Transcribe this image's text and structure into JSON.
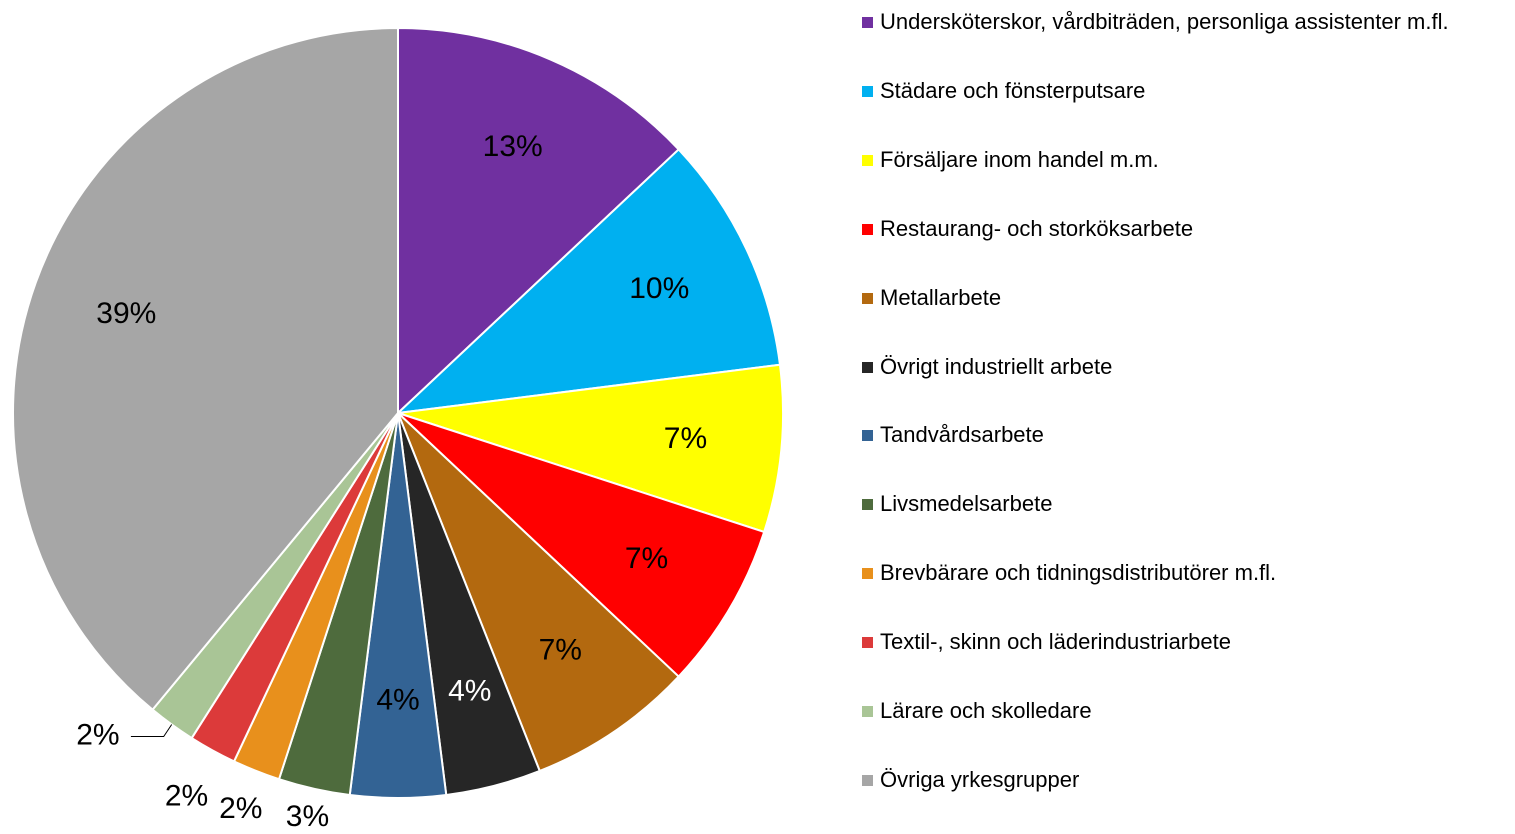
{
  "chart_data": {
    "type": "pie",
    "categories": [
      "Undersköterskor, vårdbiträden, personliga assistenter m.fl.",
      "Städare och fönsterputsare",
      "Försäljare inom handel m.m.",
      "Restaurang- och storköksarbete",
      "Metallarbete",
      "Övrigt industriellt arbete",
      "Tandvårdsarbete",
      "Livsmedelsarbete",
      "Brevbärare och tidningsdistributörer m.fl.",
      "Textil-, skinn och läderindustriarbete",
      "Lärare och skolledare",
      "Övriga yrkesgrupper"
    ],
    "values": [
      13,
      10,
      7,
      7,
      7,
      4,
      4,
      3,
      2,
      2,
      2,
      39
    ],
    "value_labels": [
      "13%",
      "10%",
      "7%",
      "7%",
      "7%",
      "4%",
      "4%",
      "3%",
      "2%",
      "2%",
      "2%",
      "39%"
    ],
    "colors": [
      "#7030a0",
      "#00b0f0",
      "#ffff00",
      "#ff0000",
      "#b3690f",
      "#262626",
      "#336394",
      "#4e6b3d",
      "#e8901c",
      "#dc3a3a",
      "#a9c596",
      "#a6a6a6"
    ],
    "legend": "right"
  }
}
